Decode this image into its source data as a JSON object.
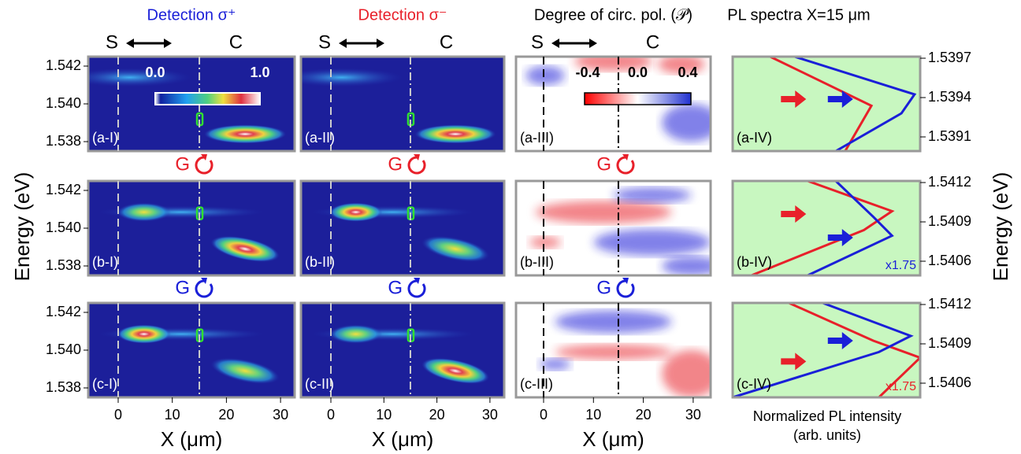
{
  "columns": [
    {
      "title": "Detection σ⁺",
      "left": "S",
      "right": "C"
    },
    {
      "title": "Detection σ⁻",
      "left": "S",
      "right": "C"
    },
    {
      "title": "Degree of circ. pol. (𝒫)",
      "left": "S",
      "right": "C"
    },
    {
      "title": "PL spectra X=15 μm"
    }
  ],
  "colorbar_intensity": {
    "ticks": [
      "0.0",
      "1.0"
    ]
  },
  "colorbar_polarization": {
    "ticks": [
      "-0.4",
      "0.0",
      "0.4"
    ]
  },
  "panels": [
    [
      "(a-I)",
      "(a-II)",
      "(a-III)",
      "(a-IV)"
    ],
    [
      "(b-I)",
      "(b-II)",
      "(b-III)",
      "(b-IV)"
    ],
    [
      "(c-I)",
      "(c-II)",
      "(c-III)",
      "(c-IV)"
    ]
  ],
  "excitation": [
    [
      "G",
      "G",
      "G"
    ],
    [
      "G",
      "G",
      "G"
    ]
  ],
  "multipliers": [
    "x1.75",
    "x1.75"
  ],
  "x_axis": {
    "label": "X (μm)",
    "ticks": [
      "0",
      "10",
      "20",
      "30"
    ]
  },
  "y_axis_left": {
    "label": "Energy (eV)",
    "ticks": [
      "1.542",
      "1.540",
      "1.538"
    ]
  },
  "y_axis_right": {
    "label": "Energy (eV)",
    "ticks": [
      [
        "1.5397",
        "1.5394",
        "1.5391"
      ],
      [
        "1.5412",
        "1.5409",
        "1.5406"
      ],
      [
        "1.5412",
        "1.5409",
        "1.5406"
      ]
    ]
  },
  "intensity_axis": {
    "label": "Normalized PL intensity",
    "sublabel": "(arb. units)"
  }
}
